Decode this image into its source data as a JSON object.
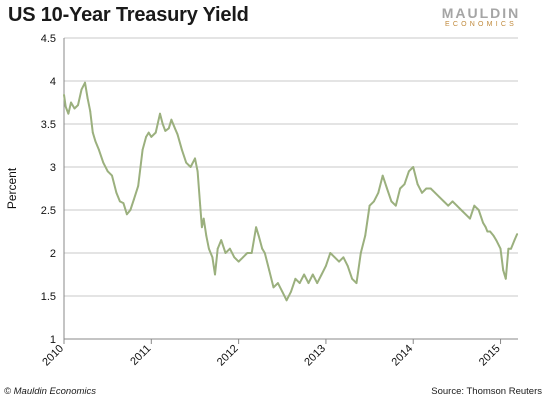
{
  "header": {
    "title": "US 10-Year Treasury Yield",
    "logo_main": "MAULDIN",
    "logo_sub": "ECONOMICS"
  },
  "footer": {
    "copyright": "© Mauldin Economics",
    "source": "Source: Thomson Reuters"
  },
  "chart_data": {
    "type": "line",
    "title": "US 10-Year Treasury Yield",
    "xlabel": "",
    "ylabel": "Percent",
    "ylim": [
      1,
      4.5
    ],
    "xlim": [
      2010.0,
      2015.2
    ],
    "y_ticks": [
      "1",
      "1.5",
      "2",
      "2.5",
      "3",
      "3.5",
      "4",
      "4.5"
    ],
    "x_ticks": [
      "2010",
      "2011",
      "2012",
      "2013",
      "2014",
      "2015"
    ],
    "grid": "horizontal",
    "line_color": "#9bb07e",
    "series": [
      {
        "x": [
          2010.0,
          2010.02,
          2010.05,
          2010.08,
          2010.12,
          2010.16,
          2010.2,
          2010.24,
          2010.27,
          2010.3,
          2010.33,
          2010.36,
          2010.4,
          2010.45,
          2010.5,
          2010.55,
          2010.6,
          2010.64,
          2010.68,
          2010.72,
          2010.76,
          2010.8,
          2010.85,
          2010.9,
          2010.94,
          2010.97,
          2011.0,
          2011.05,
          2011.1,
          2011.13,
          2011.16,
          2011.2,
          2011.23,
          2011.27,
          2011.3,
          2011.35,
          2011.4,
          2011.45,
          2011.5,
          2011.53,
          2011.56,
          2011.58,
          2011.6,
          2011.63,
          2011.66,
          2011.7,
          2011.73,
          2011.76,
          2011.8,
          2011.85,
          2011.9,
          2011.95,
          2012.0,
          2012.05,
          2012.1,
          2012.15,
          2012.2,
          2012.23,
          2012.27,
          2012.3,
          2012.35,
          2012.4,
          2012.45,
          2012.5,
          2012.55,
          2012.6,
          2012.65,
          2012.7,
          2012.75,
          2012.8,
          2012.85,
          2012.9,
          2012.95,
          2013.0,
          2013.05,
          2013.1,
          2013.15,
          2013.2,
          2013.25,
          2013.3,
          2013.35,
          2013.4,
          2013.45,
          2013.5,
          2013.55,
          2013.6,
          2013.65,
          2013.7,
          2013.75,
          2013.8,
          2013.85,
          2013.9,
          2013.95,
          2014.0,
          2014.05,
          2014.1,
          2014.15,
          2014.2,
          2014.25,
          2014.3,
          2014.35,
          2014.4,
          2014.45,
          2014.5,
          2014.55,
          2014.6,
          2014.65,
          2014.7,
          2014.75,
          2014.8,
          2014.83,
          2014.85,
          2014.88,
          2014.92,
          2014.95,
          2015.0,
          2015.03,
          2015.06,
          2015.09,
          2015.12,
          2015.16,
          2015.19
        ],
        "y": [
          3.84,
          3.7,
          3.62,
          3.75,
          3.68,
          3.72,
          3.9,
          3.98,
          3.8,
          3.65,
          3.4,
          3.3,
          3.2,
          3.05,
          2.95,
          2.9,
          2.7,
          2.6,
          2.58,
          2.45,
          2.5,
          2.62,
          2.78,
          3.2,
          3.35,
          3.4,
          3.35,
          3.4,
          3.62,
          3.5,
          3.42,
          3.45,
          3.55,
          3.45,
          3.38,
          3.2,
          3.05,
          3.0,
          3.1,
          2.95,
          2.55,
          2.3,
          2.4,
          2.2,
          2.05,
          1.95,
          1.75,
          2.05,
          2.15,
          2.0,
          2.05,
          1.95,
          1.9,
          1.95,
          2.0,
          2.0,
          2.3,
          2.2,
          2.05,
          2.0,
          1.8,
          1.6,
          1.65,
          1.55,
          1.45,
          1.55,
          1.7,
          1.65,
          1.75,
          1.65,
          1.75,
          1.65,
          1.75,
          1.85,
          2.0,
          1.95,
          1.9,
          1.95,
          1.85,
          1.7,
          1.65,
          2.0,
          2.2,
          2.55,
          2.6,
          2.7,
          2.9,
          2.75,
          2.6,
          2.55,
          2.75,
          2.8,
          2.95,
          3.0,
          2.8,
          2.7,
          2.75,
          2.75,
          2.7,
          2.65,
          2.6,
          2.55,
          2.6,
          2.55,
          2.5,
          2.45,
          2.4,
          2.55,
          2.5,
          2.35,
          2.3,
          2.25,
          2.25,
          2.2,
          2.15,
          2.05,
          1.8,
          1.7,
          2.05,
          2.05,
          2.15,
          2.22
        ]
      }
    ]
  }
}
